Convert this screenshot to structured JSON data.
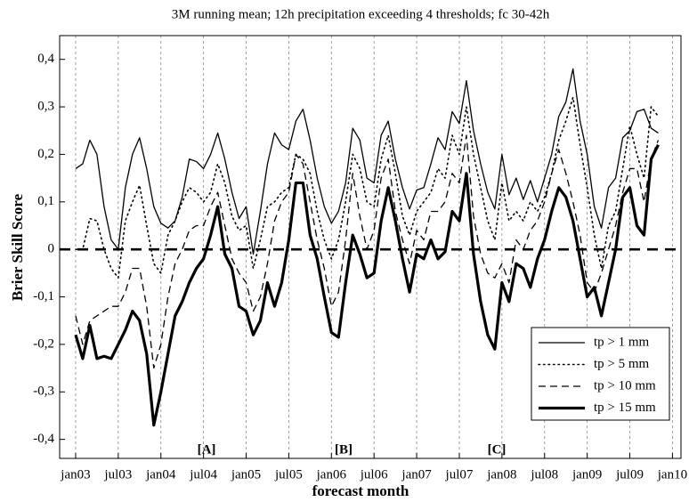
{
  "chart_data": {
    "type": "line",
    "title": "3M running mean; 12h precipitation exceeding 4 thresholds; fc 30-42h",
    "x_label": "forecast month",
    "y_label": "Brier Skill Score",
    "x": [
      0,
      1,
      2,
      3,
      4,
      5,
      6,
      7,
      8,
      9,
      10,
      11,
      12,
      13,
      14,
      15,
      16,
      17,
      18,
      19,
      20,
      21,
      22,
      23,
      24,
      25,
      26,
      27,
      28,
      29,
      30,
      31,
      32,
      33,
      34,
      35,
      36,
      37,
      38,
      39,
      40,
      41,
      42,
      43,
      44,
      45,
      46,
      47,
      48,
      49,
      50,
      51,
      52,
      53,
      54,
      55,
      56,
      57,
      58,
      59,
      60,
      61,
      62,
      63,
      64,
      65,
      66,
      67,
      68,
      69,
      70,
      71,
      72,
      73,
      74,
      75,
      76,
      77,
      78,
      79,
      80,
      81,
      82
    ],
    "xlim": [
      -2.25,
      85.2
    ],
    "xticks": [
      {
        "value": 0,
        "label": "jan03"
      },
      {
        "value": 6,
        "label": "jul03"
      },
      {
        "value": 12,
        "label": "jan04"
      },
      {
        "value": 18,
        "label": "jul04"
      },
      {
        "value": 24,
        "label": "jan05"
      },
      {
        "value": 30,
        "label": "jul05"
      },
      {
        "value": 36,
        "label": "jan06"
      },
      {
        "value": 42,
        "label": "jul06"
      },
      {
        "value": 48,
        "label": "jan07"
      },
      {
        "value": 54,
        "label": "jul07"
      },
      {
        "value": 60,
        "label": "jan08"
      },
      {
        "value": 66,
        "label": "jul08"
      },
      {
        "value": 72,
        "label": "jan09"
      },
      {
        "value": 78,
        "label": "jul09"
      },
      {
        "value": 84,
        "label": "jan10"
      }
    ],
    "ylim": [
      -0.44,
      0.45
    ],
    "yticks": [
      {
        "value": -0.4,
        "label": "-0,4"
      },
      {
        "value": -0.3,
        "label": "-0,3"
      },
      {
        "value": -0.2,
        "label": "-0,2"
      },
      {
        "value": -0.1,
        "label": "-0,1"
      },
      0,
      {
        "value": 0.1,
        "label": "0,1"
      },
      {
        "value": 0.2,
        "label": "0,2"
      },
      {
        "value": 0.3,
        "label": "0,3"
      },
      {
        "value": 0.4,
        "label": "0,4"
      }
    ],
    "grid": "x",
    "reference_line": 0,
    "legend_position": "lower right",
    "annotations": [
      "[A]",
      "[B]",
      "[C]"
    ],
    "series": [
      {
        "name": "tp > 1 mm",
        "color": "#000000",
        "line_style": "solid",
        "line_width": 1.3,
        "values": [
          0.17,
          0.18,
          0.23,
          0.2,
          0.09,
          0.02,
          0.0,
          0.13,
          0.2,
          0.235,
          0.17,
          0.09,
          0.055,
          0.045,
          0.06,
          0.11,
          0.19,
          0.185,
          0.17,
          0.2,
          0.245,
          0.19,
          0.12,
          0.065,
          0.09,
          -0.01,
          0.08,
          0.18,
          0.245,
          0.22,
          0.21,
          0.27,
          0.295,
          0.23,
          0.15,
          0.09,
          0.055,
          0.08,
          0.14,
          0.255,
          0.23,
          0.15,
          0.14,
          0.24,
          0.27,
          0.19,
          0.13,
          0.085,
          0.125,
          0.13,
          0.18,
          0.235,
          0.21,
          0.29,
          0.265,
          0.355,
          0.25,
          0.18,
          0.12,
          0.085,
          0.2,
          0.115,
          0.15,
          0.105,
          0.145,
          0.1,
          0.15,
          0.2,
          0.28,
          0.31,
          0.38,
          0.27,
          0.2,
          0.09,
          0.045,
          0.13,
          0.15,
          0.235,
          0.25,
          0.29,
          0.295,
          0.255,
          0.245
        ]
      },
      {
        "name": "tp > 5 mm",
        "color": "#000000",
        "line_style": "dotted",
        "line_width": 1.6,
        "values": [
          0.0,
          0.0,
          0.065,
          0.06,
          0.0,
          -0.04,
          -0.06,
          0.06,
          0.1,
          0.135,
          0.05,
          -0.03,
          -0.05,
          0.03,
          0.06,
          0.1,
          0.13,
          0.12,
          0.1,
          0.12,
          0.18,
          0.14,
          0.07,
          0.04,
          0.05,
          -0.04,
          0.02,
          0.09,
          0.1,
          0.12,
          0.13,
          0.2,
          0.19,
          0.16,
          0.08,
          0.02,
          -0.02,
          0.02,
          0.1,
          0.2,
          0.17,
          0.1,
          0.09,
          0.19,
          0.24,
          0.16,
          0.07,
          0.03,
          0.08,
          0.1,
          0.12,
          0.17,
          0.15,
          0.24,
          0.2,
          0.3,
          0.2,
          0.13,
          0.06,
          0.02,
          0.14,
          0.06,
          0.08,
          0.06,
          0.1,
          0.08,
          0.11,
          0.16,
          0.23,
          0.27,
          0.32,
          0.22,
          0.13,
          0.03,
          -0.04,
          0.05,
          0.08,
          0.17,
          0.26,
          0.2,
          0.15,
          0.3,
          0.28
        ]
      },
      {
        "name": "tp > 10 mm",
        "color": "#000000",
        "line_style": "dashed",
        "line_width": 1.3,
        "values": [
          -0.14,
          -0.2,
          -0.15,
          -0.14,
          -0.13,
          -0.12,
          -0.12,
          -0.09,
          -0.04,
          -0.04,
          -0.12,
          -0.25,
          -0.2,
          -0.1,
          -0.03,
          0.0,
          0.04,
          0.05,
          0.05,
          0.09,
          0.12,
          0.05,
          -0.02,
          -0.05,
          -0.07,
          -0.13,
          -0.1,
          -0.03,
          0.06,
          0.1,
          0.12,
          0.2,
          0.18,
          0.1,
          0.02,
          -0.04,
          -0.12,
          -0.09,
          0.02,
          0.16,
          0.07,
          0.0,
          0.04,
          0.15,
          0.19,
          0.08,
          0.02,
          -0.03,
          0.04,
          0.02,
          0.08,
          0.08,
          0.1,
          0.16,
          0.14,
          0.24,
          0.07,
          -0.01,
          -0.05,
          -0.06,
          -0.03,
          -0.07,
          0.02,
          0.0,
          0.04,
          0.06,
          0.1,
          0.16,
          0.21,
          0.16,
          0.1,
          0.03,
          -0.07,
          -0.09,
          -0.05,
          0.0,
          0.05,
          0.12,
          0.17,
          0.17,
          0.1,
          0.19,
          0.23
        ]
      },
      {
        "name": "tp > 15 mm",
        "color": "#000000",
        "line_style": "solid",
        "line_width": 3.2,
        "values": [
          -0.18,
          -0.23,
          -0.16,
          -0.23,
          -0.225,
          -0.23,
          -0.2,
          -0.17,
          -0.13,
          -0.15,
          -0.22,
          -0.37,
          -0.3,
          -0.22,
          -0.14,
          -0.11,
          -0.07,
          -0.04,
          -0.02,
          0.03,
          0.09,
          -0.01,
          -0.04,
          -0.12,
          -0.13,
          -0.18,
          -0.15,
          -0.07,
          -0.12,
          -0.07,
          0.02,
          0.14,
          0.14,
          0.03,
          -0.02,
          -0.1,
          -0.175,
          -0.185,
          -0.07,
          0.03,
          -0.01,
          -0.06,
          -0.05,
          0.06,
          0.13,
          0.06,
          -0.02,
          -0.09,
          -0.01,
          -0.02,
          0.02,
          -0.02,
          -0.005,
          0.08,
          0.06,
          0.16,
          -0.01,
          -0.11,
          -0.18,
          -0.21,
          -0.07,
          -0.11,
          -0.03,
          -0.04,
          -0.08,
          -0.02,
          0.02,
          0.08,
          0.13,
          0.11,
          0.06,
          -0.02,
          -0.1,
          -0.08,
          -0.14,
          -0.07,
          0.0,
          0.11,
          0.13,
          0.05,
          0.03,
          0.19,
          0.22
        ]
      }
    ]
  }
}
